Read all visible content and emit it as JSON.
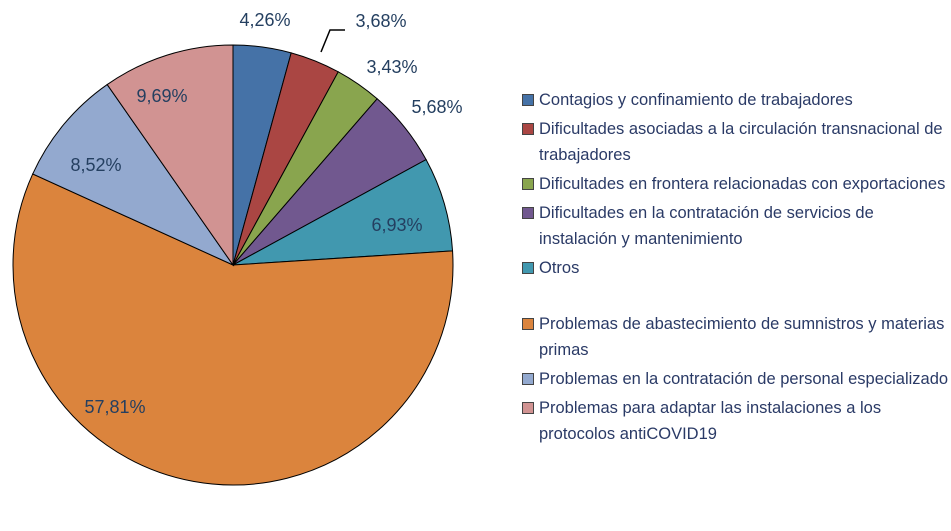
{
  "chart_data": {
    "type": "pie",
    "categories": [
      "Contagios y confinamiento de trabajadores",
      "Dificultades asociadas a la circulación transnacional de trabajadores",
      "Dificultades en frontera relacionadas con exportaciones",
      "Dificultades en la contratación de servicios de instalación y mantenimiento",
      "Otros",
      "Problemas de abastecimiento de sumnistros y materias primas",
      "Problemas en la contratación de personal especializado",
      "Problemas para adaptar las instalaciones a los protocolos antiCOVID19"
    ],
    "values": [
      4.26,
      3.68,
      3.43,
      5.68,
      6.93,
      57.81,
      8.52,
      9.69
    ],
    "value_labels": [
      "4,26%",
      "3,68%",
      "3,43%",
      "5,68%",
      "6,93%",
      "57,81%",
      "8,52%",
      "9,69%"
    ],
    "colors": [
      "#4572a7",
      "#aa4643",
      "#89a54e",
      "#71588f",
      "#4198af",
      "#db843d",
      "#93a9cf",
      "#d19392"
    ],
    "legend": "right"
  }
}
